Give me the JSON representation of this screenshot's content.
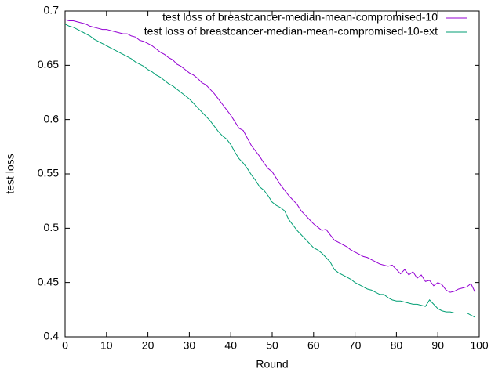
{
  "chart_data": {
    "type": "line",
    "xlabel": "Round",
    "ylabel": "test loss",
    "x": [
      0,
      1,
      2,
      3,
      4,
      5,
      6,
      7,
      8,
      9,
      10,
      11,
      12,
      13,
      14,
      15,
      16,
      17,
      18,
      19,
      20,
      21,
      22,
      23,
      24,
      25,
      26,
      27,
      28,
      29,
      30,
      31,
      32,
      33,
      34,
      35,
      36,
      37,
      38,
      39,
      40,
      41,
      42,
      43,
      44,
      45,
      46,
      47,
      48,
      49,
      50,
      51,
      52,
      53,
      54,
      55,
      56,
      57,
      58,
      59,
      60,
      61,
      62,
      63,
      64,
      65,
      66,
      67,
      68,
      69,
      70,
      71,
      72,
      73,
      74,
      75,
      76,
      77,
      78,
      79,
      80,
      81,
      82,
      83,
      84,
      85,
      86,
      87,
      88,
      89,
      90,
      91,
      92,
      93,
      94,
      95,
      96,
      97,
      98,
      99
    ],
    "series": [
      {
        "name": "test loss of breastcancer-median-mean-compromised-10",
        "color": "#9400d3",
        "values": [
          0.692,
          0.691,
          0.691,
          0.69,
          0.689,
          0.688,
          0.686,
          0.685,
          0.684,
          0.683,
          0.683,
          0.682,
          0.681,
          0.68,
          0.679,
          0.679,
          0.677,
          0.676,
          0.673,
          0.672,
          0.67,
          0.668,
          0.665,
          0.662,
          0.66,
          0.657,
          0.655,
          0.651,
          0.649,
          0.646,
          0.643,
          0.641,
          0.638,
          0.634,
          0.632,
          0.628,
          0.624,
          0.619,
          0.614,
          0.609,
          0.604,
          0.598,
          0.592,
          0.59,
          0.583,
          0.576,
          0.571,
          0.566,
          0.56,
          0.555,
          0.552,
          0.546,
          0.54,
          0.535,
          0.53,
          0.526,
          0.522,
          0.516,
          0.512,
          0.508,
          0.504,
          0.501,
          0.498,
          0.499,
          0.494,
          0.489,
          0.487,
          0.485,
          0.483,
          0.48,
          0.478,
          0.476,
          0.474,
          0.473,
          0.471,
          0.469,
          0.467,
          0.466,
          0.465,
          0.466,
          0.462,
          0.458,
          0.462,
          0.457,
          0.46,
          0.454,
          0.457,
          0.451,
          0.452,
          0.447,
          0.45,
          0.448,
          0.443,
          0.441,
          0.442,
          0.444,
          0.445,
          0.446,
          0.449,
          0.441
        ]
      },
      {
        "name": "test loss of breastcancer-median-mean-compromised-10-ext",
        "color": "#009e73",
        "values": [
          0.688,
          0.686,
          0.685,
          0.683,
          0.681,
          0.679,
          0.677,
          0.674,
          0.672,
          0.67,
          0.668,
          0.666,
          0.664,
          0.662,
          0.66,
          0.658,
          0.656,
          0.653,
          0.651,
          0.649,
          0.646,
          0.644,
          0.641,
          0.639,
          0.636,
          0.633,
          0.631,
          0.628,
          0.625,
          0.622,
          0.619,
          0.615,
          0.611,
          0.607,
          0.603,
          0.599,
          0.594,
          0.589,
          0.585,
          0.582,
          0.577,
          0.57,
          0.564,
          0.56,
          0.555,
          0.549,
          0.544,
          0.538,
          0.535,
          0.53,
          0.524,
          0.521,
          0.519,
          0.516,
          0.508,
          0.503,
          0.498,
          0.494,
          0.49,
          0.486,
          0.482,
          0.48,
          0.477,
          0.473,
          0.469,
          0.462,
          0.459,
          0.457,
          0.455,
          0.453,
          0.45,
          0.448,
          0.446,
          0.444,
          0.443,
          0.441,
          0.439,
          0.439,
          0.436,
          0.434,
          0.433,
          0.433,
          0.432,
          0.431,
          0.43,
          0.43,
          0.429,
          0.428,
          0.434,
          0.43,
          0.426,
          0.424,
          0.423,
          0.423,
          0.422,
          0.422,
          0.422,
          0.422,
          0.42,
          0.418
        ]
      }
    ],
    "xlim": [
      0,
      100
    ],
    "xticks": [
      0,
      10,
      20,
      30,
      40,
      50,
      60,
      70,
      80,
      90,
      100
    ],
    "ylim": [
      0.4,
      0.7
    ],
    "yticks": [
      0.4,
      0.45,
      0.5,
      0.55,
      0.6,
      0.65,
      0.7
    ],
    "legend": "upper right"
  }
}
